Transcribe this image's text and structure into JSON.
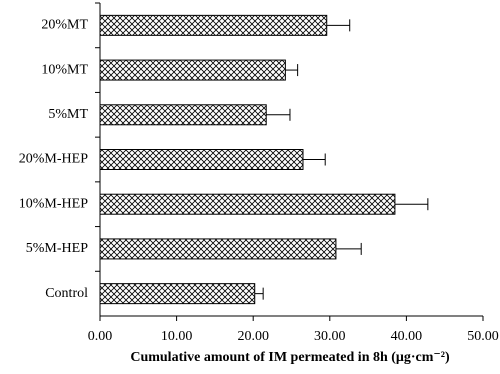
{
  "chart_data": {
    "type": "hbar",
    "categories": [
      "20%MT",
      "10%MT",
      "5%MT",
      "20%M-HEP",
      "10%M-HEP",
      "5%M-HEP",
      "Control"
    ],
    "values": [
      29.6,
      24.2,
      21.7,
      26.5,
      38.5,
      30.8,
      20.2
    ],
    "errors": [
      3.0,
      1.6,
      3.1,
      2.9,
      4.3,
      3.3,
      1.1
    ],
    "color": "#000000",
    "xlabel": "Cumulative  amount of IM permeated in 8h (μg·cm⁻²)",
    "xlim": [
      0,
      50
    ],
    "xticks": [
      {
        "value": 0,
        "label": "0.00"
      },
      {
        "value": 10,
        "label": "10.00"
      },
      {
        "value": 20,
        "label": "20.00"
      },
      {
        "value": 30,
        "label": "30.00"
      },
      {
        "value": 40,
        "label": "40.00"
      },
      {
        "value": 50,
        "label": "50.00"
      }
    ]
  }
}
